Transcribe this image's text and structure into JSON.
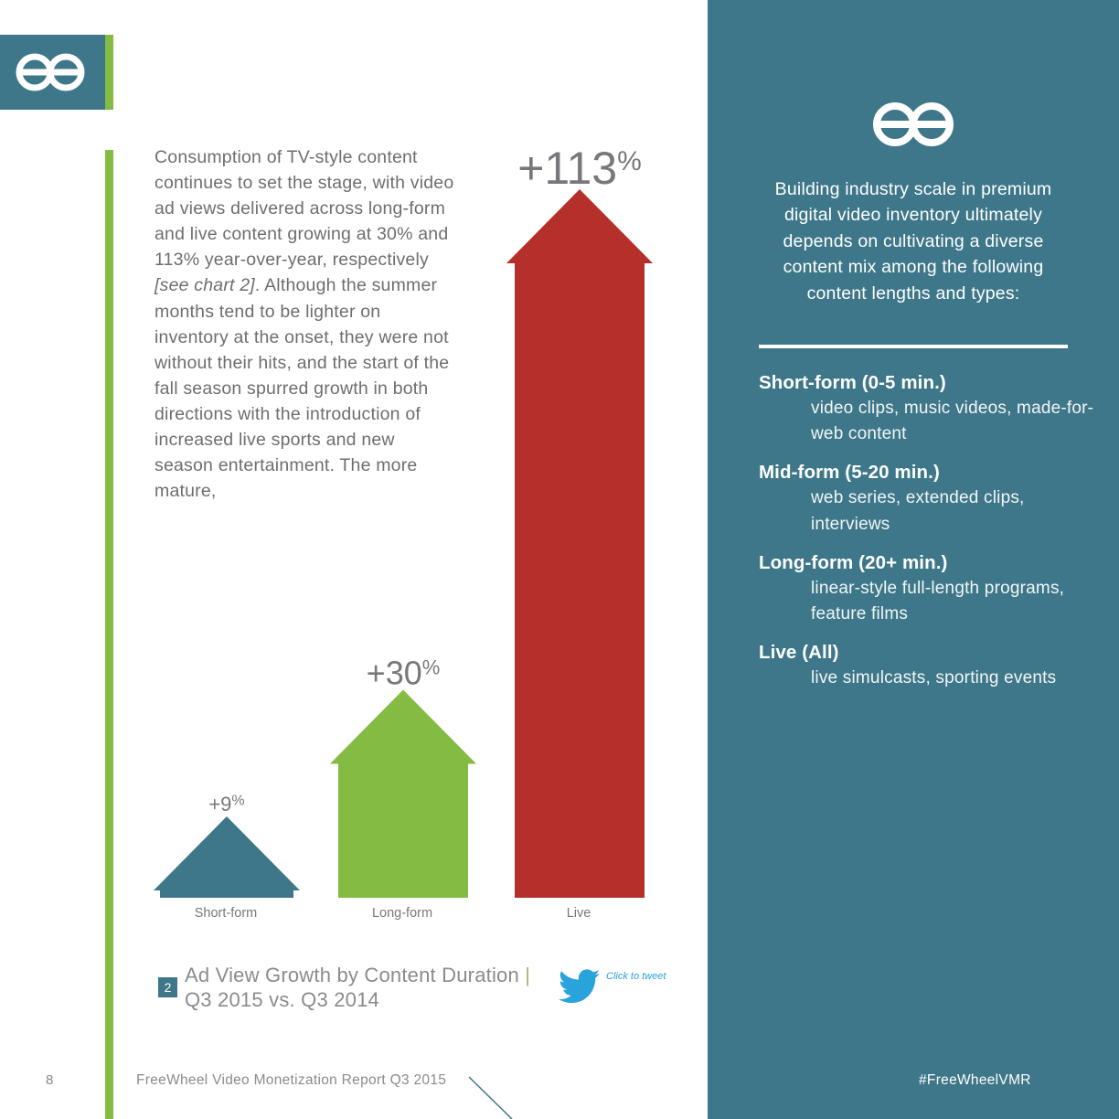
{
  "body_text": {
    "part1": "Consumption of TV-style content continues to set the stage, with video ad views delivered across long-form and live content growing at 30% and 113% year-over-year, respectively ",
    "chart_ref": "[see chart 2]",
    "part2": ". Although the summer months tend to be lighter on inventory at the onset, they were not without their hits, and the start of the fall season spurred growth in both directions with the introduction of increased live sports and new season entertainment. The more mature,"
  },
  "chart_data": {
    "type": "bar",
    "categories": [
      "Short-form",
      "Long-form",
      "Live"
    ],
    "values": [
      9,
      30,
      113
    ],
    "value_labels": [
      {
        "num": "+9",
        "unit": "%"
      },
      {
        "num": "+30",
        "unit": "%"
      },
      {
        "num": "+113",
        "unit": "%"
      }
    ],
    "colors": [
      "#3e7789",
      "#84bb43",
      "#b52f2b"
    ],
    "title": "Ad View Growth by Content Duration | Q3 2015 vs. Q3 2014"
  },
  "caption": {
    "number": "2",
    "line1": "Ad View Growth by Content Duration ",
    "bar": "|",
    "line2": "Q3 2015 vs. Q3 2014"
  },
  "tweet": {
    "label": "Click to tweet"
  },
  "footer": {
    "page_number": "8",
    "title": "FreeWheel Video Monetization Report Q3 2015",
    "hashtag": "#FreeWheelVMR"
  },
  "sidebar": {
    "intro": "Building industry scale in premium digital video inventory ultimately depends on cultivating a diverse content mix among the following content lengths and types:",
    "types": [
      {
        "title": "Short-form (0-5 min.)",
        "desc": "video clips, music videos, made-for-web content"
      },
      {
        "title": "Mid-form (5-20 min.)",
        "desc": "web series, extended clips, interviews"
      },
      {
        "title": "Long-form (20+ min.)",
        "desc": "linear-style full-length programs, feature films"
      },
      {
        "title": "Live (All)",
        "desc": "live simulcasts, sporting events"
      }
    ]
  },
  "colors": {
    "panel": "#3e7789",
    "accent_green": "#84bb43",
    "live_red": "#b52f2b",
    "text_gray": "#6d6e71",
    "twitter_blue": "#2aa3dc"
  }
}
